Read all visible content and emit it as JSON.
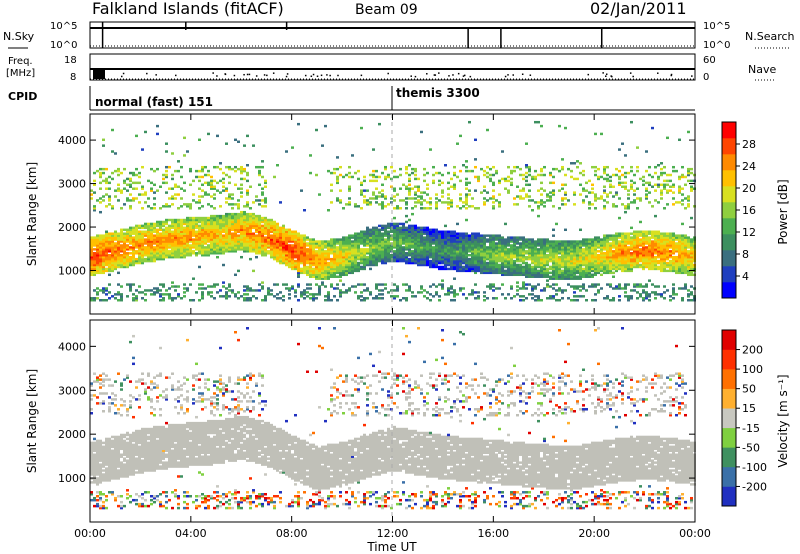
{
  "header": {
    "station": "Falkland Islands (fitACF)",
    "beam": "Beam 09",
    "date": "02/Jan/2011"
  },
  "panels": {
    "nsky_label": "N.Sky",
    "nsearch_label": "N.Search",
    "freq_label_top": "Freq.",
    "freq_label_bottom": "[MHz]",
    "nave_label": "Nave",
    "cpid_label": "CPID",
    "nsky_ticks": [
      "10^5",
      "10^0"
    ],
    "nsearch_ticks": [
      "10^5",
      "10^0"
    ],
    "freq_ticks": [
      "18",
      "8"
    ],
    "nave_ticks": [
      "60",
      "0"
    ]
  },
  "cpid": [
    {
      "name": "normal (fast) 151",
      "start_hour": 0
    },
    {
      "name": "themis 3300",
      "start_hour": 12
    }
  ],
  "chart_data": [
    {
      "type": "heatmap",
      "name": "power",
      "xlabel": "Time UT",
      "ylabel": "Slant Range [km]",
      "xlim": [
        0,
        24
      ],
      "ylim": [
        0,
        4600
      ],
      "yticks": [
        1000,
        2000,
        3000,
        4000
      ],
      "colorbar": {
        "label": "Power [dB]",
        "ticks": [
          "28",
          "24",
          "20",
          "16",
          "12",
          "8",
          "4"
        ],
        "range": [
          0,
          30
        ],
        "colors": [
          "#0000ff",
          "#1f3fbf",
          "#3a6f7f",
          "#3c8f5f",
          "#4caf50",
          "#8fcf3f",
          "#d8e020",
          "#ffc000",
          "#ff8a00",
          "#ff4500",
          "#ff0000"
        ]
      },
      "main_echo_band": {
        "hours": [
          0,
          1,
          2,
          3,
          4,
          5,
          6,
          7,
          8,
          9,
          10,
          11,
          12,
          13,
          14,
          15,
          16,
          17,
          18,
          19,
          20,
          21,
          22,
          23,
          24
        ],
        "center_km": [
          1300,
          1450,
          1600,
          1700,
          1750,
          1800,
          1900,
          1750,
          1450,
          1200,
          1300,
          1500,
          1650,
          1550,
          1450,
          1400,
          1350,
          1300,
          1250,
          1200,
          1300,
          1400,
          1450,
          1400,
          1300
        ],
        "peak_power_db": [
          28,
          26,
          24,
          24,
          24,
          22,
          24,
          26,
          28,
          24,
          20,
          16,
          14,
          12,
          10,
          12,
          16,
          16,
          18,
          18,
          20,
          24,
          26,
          24,
          22
        ]
      }
    },
    {
      "type": "heatmap",
      "name": "velocity",
      "xlabel": "Time UT",
      "ylabel": "Slant Range [km]",
      "xlim": [
        0,
        24
      ],
      "ylim": [
        0,
        4600
      ],
      "yticks": [
        1000,
        2000,
        3000,
        4000
      ],
      "xticks": [
        "00:00",
        "04:00",
        "08:00",
        "12:00",
        "16:00",
        "20:00",
        "00:00"
      ],
      "colorbar": {
        "label": "Velocity [m s⁻¹]",
        "ticks": [
          "200",
          "100",
          "50",
          "15",
          "-15",
          "-50",
          "-100",
          "-200"
        ],
        "colors": [
          "#2030c0",
          "#3a70a8",
          "#3f9060",
          "#7fd040",
          "#c8c8c0",
          "#ffb030",
          "#ff7000",
          "#ff3000",
          "#e00000"
        ]
      },
      "ground_scatter_color": "#c0c0b8"
    }
  ]
}
